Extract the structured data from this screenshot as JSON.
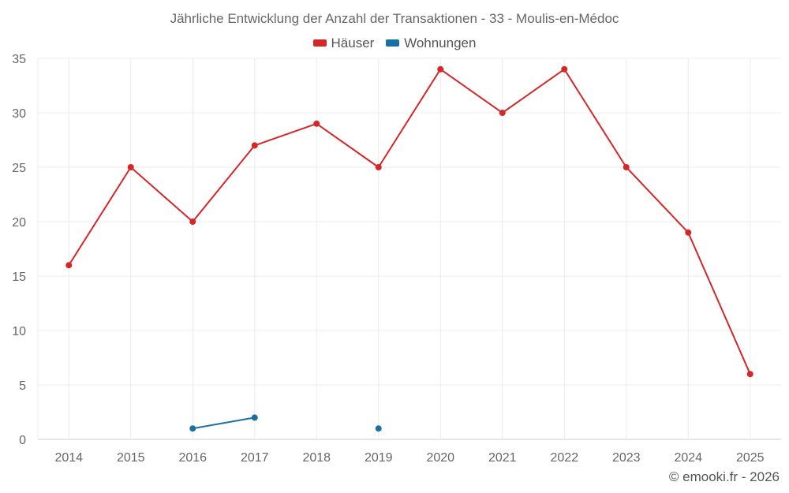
{
  "chart_data": {
    "type": "line",
    "title": "Jährliche Entwicklung der Anzahl der Transaktionen - 33 - Moulis-en-Médoc",
    "categories": [
      "2014",
      "2015",
      "2016",
      "2017",
      "2018",
      "2019",
      "2020",
      "2021",
      "2022",
      "2023",
      "2024",
      "2025"
    ],
    "series": [
      {
        "name": "Häuser",
        "color": "#d62728",
        "values": [
          16,
          25,
          20,
          27,
          29,
          25,
          34,
          30,
          34,
          25,
          19,
          6
        ]
      },
      {
        "name": "Wohnungen",
        "color": "#1a6fa3",
        "values": [
          null,
          null,
          1,
          2,
          null,
          1,
          null,
          null,
          null,
          null,
          null,
          null
        ]
      }
    ],
    "ylim": [
      0,
      35
    ],
    "yticks": [
      0,
      5,
      10,
      15,
      20,
      25,
      30,
      35
    ],
    "grid": true,
    "legend": "top-center"
  },
  "credit": "© emooki.fr - 2026"
}
